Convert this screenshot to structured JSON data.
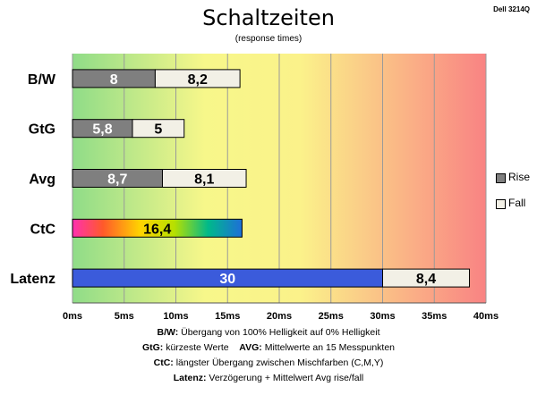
{
  "chart_data": {
    "type": "bar",
    "orientation": "horizontal",
    "stacked": true,
    "title": "Schaltzeiten",
    "subtitle": "(response times)",
    "corner_label": "Dell 3214Q",
    "categories": [
      "B/W",
      "GtG",
      "Avg",
      "CtC",
      "Latenz"
    ],
    "series": [
      {
        "name": "Rise",
        "values": [
          8,
          5.8,
          8.7,
          16.4,
          30
        ],
        "labels": [
          "8",
          "5,8",
          "8,7",
          "16,4",
          "30"
        ]
      },
      {
        "name": "Fall",
        "values": [
          8.2,
          5,
          8.1,
          null,
          8.4
        ],
        "labels": [
          "8,2",
          "5",
          "8,1",
          "",
          "8,4"
        ]
      }
    ],
    "xlim": [
      0,
      40
    ],
    "x_ticks": [
      0,
      5,
      10,
      15,
      20,
      25,
      30,
      35,
      40
    ],
    "x_tick_labels": [
      "0ms",
      "5ms",
      "10ms",
      "15ms",
      "20ms",
      "25ms",
      "30ms",
      "35ms",
      "40ms"
    ],
    "grid": true,
    "legend_position": "right",
    "background": "gradient green-yellow-red",
    "colors": {
      "rise": "#7f7f7f",
      "fall": "#f2f0e6",
      "latenz": "#3b5bdb",
      "gradient_green": "#8fe08a",
      "gradient_yellow": "#fbfb8a",
      "gradient_red": "#f98080"
    }
  },
  "footnotes": [
    {
      "key": "B/W:",
      "text": "Übergang von 100% Helligkeit auf 0% Helligkeit"
    },
    {
      "key": "GtG:",
      "text": "kürzeste Werte",
      "key2": "AVG:",
      "text2": "Mittelwerte an 15 Messpunkten"
    },
    {
      "key": "CtC:",
      "text": "längster Übergang zwischen Mischfarben (C,M,Y)"
    },
    {
      "key": "Latenz:",
      "text": "Verzögerung + Mittelwert Avg rise/fall"
    }
  ]
}
